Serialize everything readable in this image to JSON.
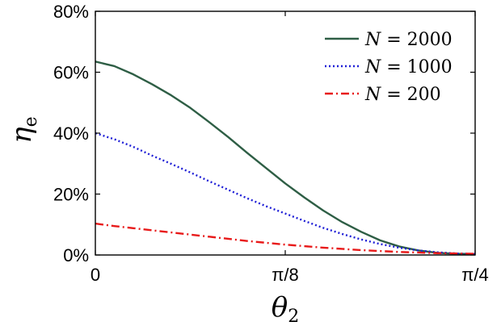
{
  "chart_data": {
    "type": "line",
    "xlabel": {
      "main": "θ",
      "sub": "2"
    },
    "ylabel": {
      "main": "η",
      "sub": "e"
    },
    "x_ticks": [
      {
        "value": 0,
        "label": "0"
      },
      {
        "value": 0.39269908,
        "label": "π/8"
      },
      {
        "value": 0.78539816,
        "label": "π/4"
      }
    ],
    "y_ticks": [
      {
        "value": 0,
        "label": "0%"
      },
      {
        "value": 20,
        "label": "20%"
      },
      {
        "value": 40,
        "label": "40%"
      },
      {
        "value": 60,
        "label": "60%"
      },
      {
        "value": 80,
        "label": "80%"
      }
    ],
    "xlim": [
      0,
      0.78539816
    ],
    "ylim": [
      0,
      80
    ],
    "grid": false,
    "legend_position": "top-right",
    "series": [
      {
        "name": "N = 2000",
        "legend": {
          "var": "N",
          "eq": " = ",
          "num": "2000"
        },
        "color": "#2e5e45",
        "dash": "solid",
        "x": [
          0,
          0.0393,
          0.0785,
          0.1178,
          0.1571,
          0.1963,
          0.2356,
          0.2749,
          0.3142,
          0.3534,
          0.3927,
          0.432,
          0.4712,
          0.5105,
          0.5498,
          0.589,
          0.6283,
          0.6676,
          0.7069,
          0.7461,
          0.7854
        ],
        "y": [
          63.5,
          62.0,
          59.3,
          56.0,
          52.4,
          48.3,
          43.6,
          38.7,
          33.5,
          28.5,
          23.5,
          18.9,
          14.6,
          10.8,
          7.6,
          4.8,
          2.8,
          1.5,
          0.7,
          0.4,
          0.3
        ]
      },
      {
        "name": "N = 1000",
        "legend": {
          "var": "N",
          "eq": " = ",
          "num": "1000"
        },
        "color": "#1f1fd6",
        "dash": "dotted",
        "x": [
          0,
          0.0393,
          0.0785,
          0.1178,
          0.1571,
          0.1963,
          0.2356,
          0.2749,
          0.3142,
          0.3534,
          0.3927,
          0.432,
          0.4712,
          0.5105,
          0.5498,
          0.589,
          0.6283,
          0.6676,
          0.7069,
          0.7461,
          0.7854
        ],
        "y": [
          40.0,
          38.0,
          35.5,
          32.6,
          29.9,
          27.1,
          24.2,
          21.4,
          18.6,
          16.0,
          13.6,
          11.2,
          8.9,
          6.9,
          5.1,
          3.6,
          2.4,
          1.5,
          0.9,
          0.5,
          0.3
        ]
      },
      {
        "name": "N = 200",
        "legend": {
          "var": "N",
          "eq": " = ",
          "num": "200"
        },
        "color": "#e81a1a",
        "dash": "dashdot",
        "x": [
          0,
          0.0393,
          0.0785,
          0.1178,
          0.1571,
          0.1963,
          0.2356,
          0.2749,
          0.3142,
          0.3534,
          0.3927,
          0.432,
          0.4712,
          0.5105,
          0.5498,
          0.589,
          0.6283,
          0.6676,
          0.7069,
          0.7461,
          0.7854
        ],
        "y": [
          10.3,
          9.5,
          8.8,
          8.1,
          7.4,
          6.7,
          6.0,
          5.3,
          4.6,
          4.0,
          3.4,
          2.9,
          2.4,
          2.0,
          1.6,
          1.3,
          1.0,
          0.8,
          0.6,
          0.5,
          0.4
        ]
      }
    ]
  }
}
